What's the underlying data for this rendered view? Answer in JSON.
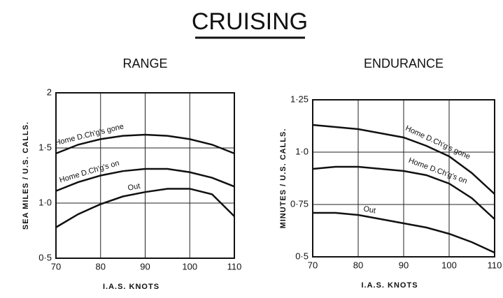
{
  "title": "CRUISING",
  "chart_data": [
    {
      "type": "line",
      "title": "RANGE",
      "x_label": "I.A.S. KNOTS",
      "y_label": "SEA MILES / U.S. CALLS.",
      "xlim": [
        70,
        110
      ],
      "xticks": [
        70,
        80,
        90,
        100,
        110
      ],
      "ylim": [
        0.5,
        2
      ],
      "yticks": [
        {
          "value": 0.5,
          "label": "0·5"
        },
        {
          "value": 1,
          "label": "1·0"
        },
        {
          "value": 1.5,
          "label": "1·5"
        },
        2
      ],
      "grid": true,
      "x": [
        70,
        75,
        80,
        85,
        90,
        95,
        100,
        105,
        110
      ],
      "series": [
        {
          "name": "Home  D.Ch'g's gone",
          "color": "#111111",
          "values": [
            1.45,
            1.53,
            1.58,
            1.61,
            1.62,
            1.61,
            1.58,
            1.53,
            1.45
          ]
        },
        {
          "name": "Home  D.Ch'g's on",
          "color": "#111111",
          "values": [
            1.11,
            1.19,
            1.25,
            1.29,
            1.31,
            1.31,
            1.28,
            1.23,
            1.15
          ]
        },
        {
          "name": "Out",
          "color": "#111111",
          "values": [
            0.78,
            0.9,
            0.99,
            1.06,
            1.1,
            1.13,
            1.13,
            1.08,
            0.88
          ]
        }
      ]
    },
    {
      "type": "line",
      "title": "ENDURANCE",
      "x_label": "I.A.S. KNOTS",
      "y_label": "MINUTES / U.S. CALLS.",
      "xlim": [
        70,
        110
      ],
      "xticks": [
        70,
        80,
        90,
        100,
        110
      ],
      "ylim": [
        0.5,
        1.25
      ],
      "yticks": [
        {
          "value": 0.5,
          "label": "0·5"
        },
        {
          "value": 0.75,
          "label": "0·75"
        },
        {
          "value": 1,
          "label": "1·0"
        },
        {
          "value": 1.25,
          "label": "1·25"
        }
      ],
      "grid": true,
      "x": [
        70,
        75,
        80,
        85,
        90,
        95,
        100,
        105,
        110
      ],
      "series": [
        {
          "name": "Home  D.Ch'g's gone",
          "color": "#111111",
          "values": [
            1.13,
            1.12,
            1.11,
            1.09,
            1.07,
            1.03,
            0.98,
            0.9,
            0.8
          ]
        },
        {
          "name": "Home  D.Ch'g's on",
          "color": "#111111",
          "values": [
            0.92,
            0.93,
            0.93,
            0.92,
            0.91,
            0.89,
            0.85,
            0.78,
            0.68
          ]
        },
        {
          "name": "Out",
          "color": "#111111",
          "values": [
            0.71,
            0.71,
            0.7,
            0.68,
            0.66,
            0.64,
            0.61,
            0.57,
            0.52
          ]
        }
      ]
    }
  ]
}
